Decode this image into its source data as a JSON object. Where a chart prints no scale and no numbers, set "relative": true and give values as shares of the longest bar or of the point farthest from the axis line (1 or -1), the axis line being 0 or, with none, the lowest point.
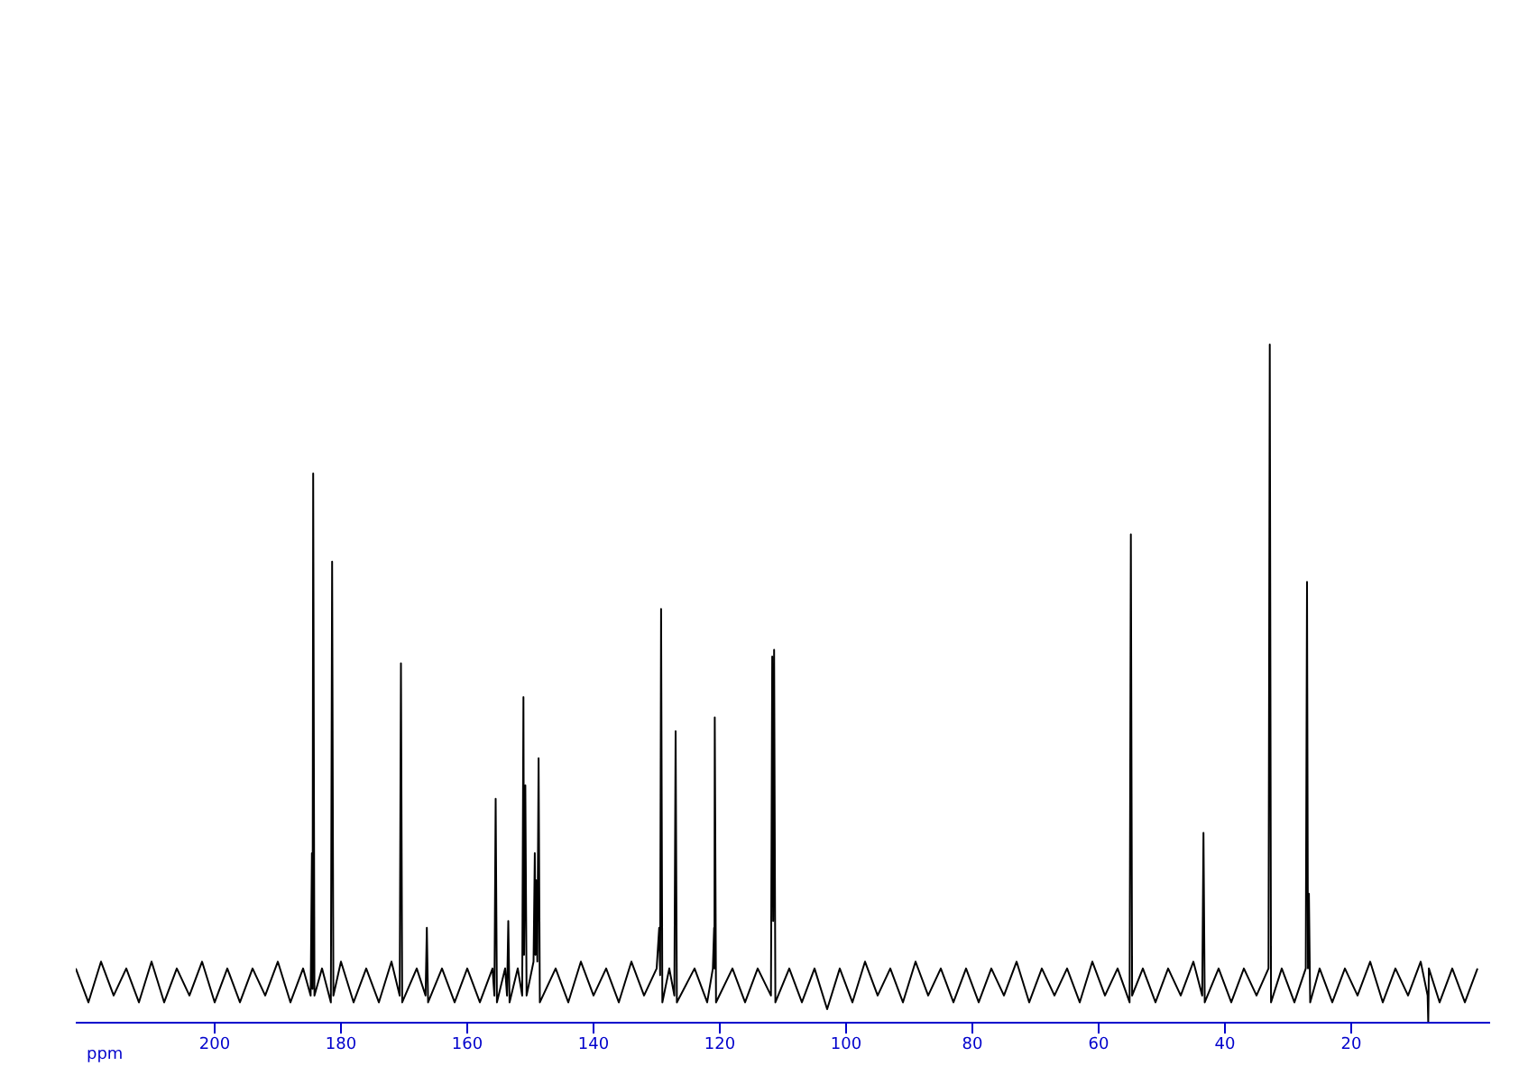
{
  "chart_data": {
    "type": "line",
    "relative": true,
    "xlabel": "ppm",
    "xlim": [
      222,
      -2
    ],
    "xticks": [
      200,
      180,
      160,
      140,
      120,
      100,
      80,
      60,
      40,
      20
    ],
    "grid": false,
    "legend": false,
    "marker": "none",
    "line_style": "solid",
    "x": [
      222,
      220,
      218,
      216,
      214,
      212,
      210,
      208,
      206,
      204,
      202,
      200,
      198,
      196,
      194,
      192,
      190,
      188,
      186,
      184.8,
      184.6,
      184.5,
      184.4,
      184.2,
      183,
      181.6,
      181.4,
      181.2,
      180,
      178,
      176,
      174,
      172,
      170.7,
      170.5,
      170.3,
      168,
      166.6,
      166.4,
      166.2,
      164,
      162,
      160,
      158,
      156,
      155.7,
      155.5,
      155.3,
      154,
      153.7,
      153.5,
      153.3,
      152,
      151.3,
      151.1,
      151.0,
      150.8,
      150.6,
      149.5,
      149.3,
      149.2,
      149.1,
      148.9,
      148.7,
      148.5,
      146,
      144,
      142,
      140,
      138,
      136,
      134,
      132,
      130,
      129.6,
      129.45,
      129.3,
      129.1,
      128,
      127.2,
      127.0,
      126.8,
      124,
      122,
      121.1,
      120.9,
      120.85,
      120.8,
      120.6,
      118,
      116,
      114,
      111.9,
      111.7,
      111.55,
      111.4,
      111.2,
      109,
      107,
      105,
      103,
      101,
      99,
      97,
      95,
      93,
      91,
      89,
      87,
      85,
      83,
      81,
      79,
      77,
      75,
      73,
      71,
      69,
      67,
      65,
      63,
      61,
      59,
      57,
      55.1,
      54.9,
      54.7,
      53,
      51,
      49,
      47,
      45,
      43.6,
      43.4,
      43.2,
      41,
      39,
      37,
      35,
      33.1,
      32.9,
      32.7,
      31,
      29,
      27.2,
      27.0,
      26.85,
      26.7,
      26.5,
      25,
      23,
      21,
      19,
      17,
      15,
      13,
      11,
      9,
      7.9,
      7.8,
      7.7,
      6,
      4,
      2,
      0
    ],
    "series": [
      {
        "color": "#000000",
        "values": [
          0.08,
          0.03,
          0.09,
          0.04,
          0.08,
          0.03,
          0.09,
          0.03,
          0.08,
          0.04,
          0.09,
          0.03,
          0.08,
          0.03,
          0.08,
          0.04,
          0.09,
          0.03,
          0.08,
          0.04,
          0.25,
          0.05,
          0.81,
          0.04,
          0.08,
          0.03,
          0.68,
          0.04,
          0.09,
          0.03,
          0.08,
          0.03,
          0.09,
          0.04,
          0.53,
          0.03,
          0.08,
          0.04,
          0.14,
          0.03,
          0.08,
          0.03,
          0.08,
          0.03,
          0.08,
          0.04,
          0.33,
          0.03,
          0.08,
          0.04,
          0.15,
          0.03,
          0.08,
          0.04,
          0.48,
          0.1,
          0.35,
          0.04,
          0.09,
          0.25,
          0.1,
          0.21,
          0.09,
          0.39,
          0.03,
          0.08,
          0.03,
          0.09,
          0.04,
          0.08,
          0.03,
          0.09,
          0.04,
          0.08,
          0.14,
          0.07,
          0.61,
          0.03,
          0.08,
          0.04,
          0.43,
          0.03,
          0.08,
          0.03,
          0.08,
          0.14,
          0.08,
          0.45,
          0.03,
          0.08,
          0.03,
          0.08,
          0.04,
          0.54,
          0.15,
          0.55,
          0.03,
          0.08,
          0.03,
          0.08,
          0.02,
          0.08,
          0.03,
          0.09,
          0.04,
          0.08,
          0.03,
          0.09,
          0.04,
          0.08,
          0.03,
          0.08,
          0.03,
          0.08,
          0.04,
          0.09,
          0.03,
          0.08,
          0.04,
          0.08,
          0.03,
          0.09,
          0.04,
          0.08,
          0.03,
          0.72,
          0.04,
          0.08,
          0.03,
          0.08,
          0.04,
          0.09,
          0.04,
          0.28,
          0.03,
          0.08,
          0.03,
          0.08,
          0.04,
          0.08,
          1,
          0.03,
          0.08,
          0.03,
          0.08,
          0.65,
          0.08,
          0.19,
          0.03,
          0.08,
          0.03,
          0.08,
          0.04,
          0.09,
          0.03,
          0.08,
          0.04,
          0.09,
          0.04,
          0,
          0.08,
          0.03,
          0.08,
          0.03,
          0.08
        ]
      }
    ]
  }
}
